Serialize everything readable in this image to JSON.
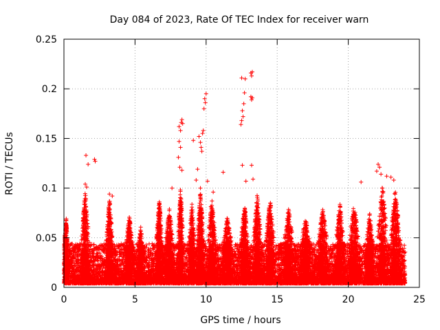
{
  "chart_data": {
    "type": "scatter",
    "title": "Day 084 of 2023, Rate Of TEC Index for receiver warn",
    "xlabel": "GPS time / hours",
    "ylabel": "ROTI / TECUs",
    "xlim": [
      0,
      25
    ],
    "ylim": [
      0,
      0.25
    ],
    "x_ticks": [
      0,
      5,
      10,
      15,
      20,
      25
    ],
    "x_tick_labels": [
      "0",
      "5",
      "10",
      "15",
      "20",
      "25"
    ],
    "y_ticks": [
      0,
      0.05,
      0.1,
      0.15,
      0.2,
      0.25
    ],
    "y_tick_labels": [
      "0",
      "0.05",
      "0.1",
      "0.15",
      "0.2",
      "0.25"
    ],
    "grid": true,
    "marker": "+",
    "series_color": "#ff0000",
    "data_note": "Dense scatter of ROTI samples over 0-24 h; outliers listed below as [hour, roti]; bulk is 0-0.05 TECUs.",
    "outliers": [
      [
        1.55,
        0.133
      ],
      [
        1.7,
        0.124
      ],
      [
        2.15,
        0.129
      ],
      [
        2.2,
        0.127
      ],
      [
        1.5,
        0.104
      ],
      [
        1.6,
        0.101
      ],
      [
        3.2,
        0.094
      ],
      [
        3.4,
        0.092
      ],
      [
        8.1,
        0.162
      ],
      [
        8.2,
        0.158
      ],
      [
        8.25,
        0.166
      ],
      [
        8.3,
        0.169
      ],
      [
        8.35,
        0.165
      ],
      [
        8.1,
        0.147
      ],
      [
        8.2,
        0.141
      ],
      [
        8.05,
        0.131
      ],
      [
        8.15,
        0.121
      ],
      [
        8.3,
        0.118
      ],
      [
        9.5,
        0.152
      ],
      [
        9.6,
        0.146
      ],
      [
        9.65,
        0.141
      ],
      [
        9.7,
        0.137
      ],
      [
        9.9,
        0.19
      ],
      [
        9.95,
        0.186
      ],
      [
        10.0,
        0.195
      ],
      [
        9.85,
        0.18
      ],
      [
        9.8,
        0.158
      ],
      [
        9.75,
        0.155
      ],
      [
        9.1,
        0.148
      ],
      [
        9.4,
        0.119
      ],
      [
        11.2,
        0.116
      ],
      [
        9.3,
        0.108
      ],
      [
        9.6,
        0.1
      ],
      [
        12.5,
        0.211
      ],
      [
        12.75,
        0.21
      ],
      [
        12.7,
        0.196
      ],
      [
        12.65,
        0.185
      ],
      [
        12.55,
        0.178
      ],
      [
        12.6,
        0.172
      ],
      [
        12.5,
        0.168
      ],
      [
        12.45,
        0.164
      ],
      [
        13.15,
        0.216
      ],
      [
        13.25,
        0.217
      ],
      [
        13.2,
        0.213
      ],
      [
        13.15,
        0.192
      ],
      [
        13.25,
        0.191
      ],
      [
        13.2,
        0.189
      ],
      [
        12.55,
        0.123
      ],
      [
        13.2,
        0.123
      ],
      [
        12.8,
        0.107
      ],
      [
        13.3,
        0.109
      ],
      [
        7.6,
        0.1
      ],
      [
        10.1,
        0.107
      ],
      [
        10.5,
        0.096
      ],
      [
        22.1,
        0.124
      ],
      [
        22.2,
        0.121
      ],
      [
        22.0,
        0.117
      ],
      [
        22.3,
        0.114
      ],
      [
        22.7,
        0.112
      ],
      [
        23.0,
        0.111
      ],
      [
        23.2,
        0.108
      ],
      [
        20.9,
        0.106
      ]
    ],
    "clusters": [
      {
        "center": 0.15,
        "spread": 0.2,
        "peak": 0.072
      },
      {
        "center": 1.5,
        "spread": 0.35,
        "peak": 0.098
      },
      {
        "center": 3.2,
        "spread": 0.3,
        "peak": 0.092
      },
      {
        "center": 4.6,
        "spread": 0.4,
        "peak": 0.072
      },
      {
        "center": 5.4,
        "spread": 0.3,
        "peak": 0.062
      },
      {
        "center": 6.7,
        "spread": 0.3,
        "peak": 0.09
      },
      {
        "center": 7.4,
        "spread": 0.4,
        "peak": 0.082
      },
      {
        "center": 8.2,
        "spread": 0.25,
        "peak": 0.1
      },
      {
        "center": 9.0,
        "spread": 0.3,
        "peak": 0.085
      },
      {
        "center": 9.6,
        "spread": 0.3,
        "peak": 0.098
      },
      {
        "center": 10.4,
        "spread": 0.4,
        "peak": 0.09
      },
      {
        "center": 11.5,
        "spread": 0.5,
        "peak": 0.072
      },
      {
        "center": 12.7,
        "spread": 0.4,
        "peak": 0.085
      },
      {
        "center": 13.6,
        "spread": 0.35,
        "peak": 0.096
      },
      {
        "center": 14.5,
        "spread": 0.4,
        "peak": 0.09
      },
      {
        "center": 15.8,
        "spread": 0.5,
        "peak": 0.08
      },
      {
        "center": 17.0,
        "spread": 0.5,
        "peak": 0.072
      },
      {
        "center": 18.2,
        "spread": 0.5,
        "peak": 0.08
      },
      {
        "center": 19.4,
        "spread": 0.4,
        "peak": 0.087
      },
      {
        "center": 20.4,
        "spread": 0.5,
        "peak": 0.085
      },
      {
        "center": 21.5,
        "spread": 0.4,
        "peak": 0.075
      },
      {
        "center": 22.4,
        "spread": 0.45,
        "peak": 0.105
      },
      {
        "center": 23.3,
        "spread": 0.45,
        "peak": 0.1
      }
    ]
  }
}
